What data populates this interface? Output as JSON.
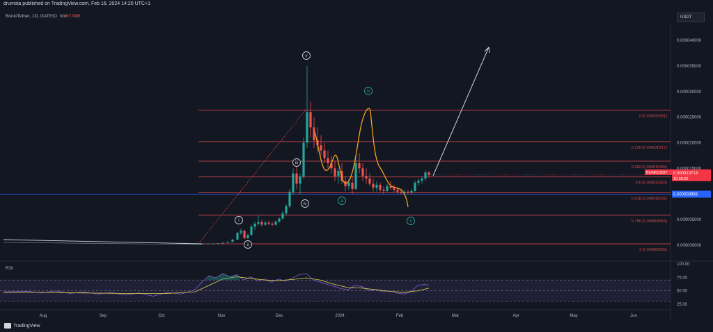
{
  "publisher": "drumsta published on TradingView.com, Feb 16, 2024 14:20 UTC+1",
  "symbol_line": "Bonk/Tether, 1D, GATEIO",
  "volume_label": "Vol",
  "volume_value": "67.99B",
  "currency_button": "USDT",
  "brand": "TradingView",
  "rsi_label": "RSI",
  "colors": {
    "bg": "#131722",
    "fib": "#e0474c",
    "arrow": "#d1d4dc",
    "price": "#f23645",
    "blue": "#2962ff",
    "wave_b": "#26a69a",
    "orange": "#f7a21b",
    "rsi_line": "#7e57c2",
    "rsi_ma": "#c9c24b"
  },
  "chart_data": {
    "type": "line",
    "title": "",
    "x_ticks": [
      "Aug",
      "Sep",
      "Oct",
      "Nov",
      "Dec",
      "2024",
      "Feb",
      "Mar",
      "Apr",
      "May",
      "Jun"
    ],
    "y_ticks": [
      "0.000040000",
      "0.000035000",
      "0.000030000",
      "0.000025000",
      "0.000020000",
      "0.000015000",
      "0.000010000",
      "0.000005000",
      "0.000000000"
    ],
    "ylim": [
      0,
      4e-05
    ],
    "fib_levels": [
      {
        "label": "0 (0.000026381)",
        "value": 2.6381e-05
      },
      {
        "label": "0.236 (0.000020217)",
        "value": 2.0217e-05
      },
      {
        "label": "0.382 (0.000016405)",
        "value": 1.6405e-05
      },
      {
        "label": "0.5 (0.000013323)",
        "value": 1.3323e-05
      },
      {
        "label": "0.618 (0.000010241)",
        "value": 1.0241e-05
      },
      {
        "label": "0.786 (0.000005854)",
        "value": 5.854e-06
      },
      {
        "label": "1 (0.000000265)",
        "value": 2.65e-07
      }
    ],
    "horizontal_line": {
      "label": "0.000009956",
      "value": 9.956e-06
    },
    "current_price": {
      "symbol": "BONKUSDT",
      "value_label": "0.000013713",
      "countdown": "10:39:20",
      "value": 1.3713e-05
    },
    "wave_labels": [
      "i",
      "ii",
      "iii",
      "iv",
      "v",
      "a",
      "b",
      "c"
    ],
    "candles": [
      [
        285,
        2.7e-07,
        2.8e-07,
        2.6e-07,
        2.8e-07
      ],
      [
        292,
        2.8e-07,
        3e-07,
        2.7e-07,
        3e-07
      ],
      [
        299,
        3e-07,
        3.2e-07,
        2.9e-07,
        3.1e-07
      ],
      [
        306,
        3.1e-07,
        3.5e-07,
        3e-07,
        3.4e-07
      ],
      [
        313,
        3.4e-07,
        4e-07,
        3.3e-07,
        3.8e-07
      ],
      [
        320,
        3.8e-07,
        5e-07,
        3.6e-07,
        4.7e-07
      ],
      [
        327,
        4.7e-07,
        7e-07,
        4.5e-07,
        6.5e-07
      ],
      [
        334,
        6.5e-07,
        1.2e-06,
        6e-07,
        1.1e-06
      ],
      [
        341,
        1.1e-06,
        2.6e-06,
        1e-06,
        2.4e-06
      ],
      [
        346,
        2.4e-06,
        3.2e-06,
        2e-06,
        2.8e-06
      ],
      [
        351,
        2.8e-06,
        3e-06,
        1.2e-06,
        1.4e-06
      ],
      [
        356,
        1.4e-06,
        2.2e-06,
        1.2e-06,
        2e-06
      ],
      [
        361,
        2e-06,
        4e-06,
        1.9e-06,
        3.6e-06
      ],
      [
        366,
        3.6e-06,
        4.6e-06,
        3e-06,
        4.2e-06
      ],
      [
        371,
        4.2e-06,
        5.8e-06,
        3.8e-06,
        4.5e-06
      ],
      [
        376,
        4.5e-06,
        5e-06,
        3.6e-06,
        4e-06
      ],
      [
        381,
        4e-06,
        4.8e-06,
        3.8e-06,
        4.4e-06
      ],
      [
        386,
        4.4e-06,
        4.8e-06,
        3.9e-06,
        4.2e-06
      ],
      [
        391,
        4.2e-06,
        4.6e-06,
        3.8e-06,
        4e-06
      ],
      [
        396,
        4e-06,
        4.8e-06,
        3.8e-06,
        4.6e-06
      ],
      [
        401,
        4.6e-06,
        5.4e-06,
        4.4e-06,
        5.2e-06
      ],
      [
        406,
        5.2e-06,
        6.6e-06,
        5e-06,
        6.2e-06
      ],
      [
        411,
        6.2e-06,
        8e-06,
        5.8e-06,
        7.6e-06
      ],
      [
        416,
        7.6e-06,
        1.1e-05,
        7.2e-06,
        1.04e-05
      ],
      [
        421,
        1.04e-05,
        1.5e-05,
        9.8e-06,
        1.4e-05
      ],
      [
        426,
        1.4e-05,
        1.6e-05,
        1.1e-05,
        1.2e-05
      ],
      [
        431,
        1.2e-05,
        1.4e-05,
        1e-05,
        1.34e-05
      ],
      [
        436,
        1.34e-05,
        2.1e-05,
        1.3e-05,
        2e-05
      ],
      [
        441,
        2e-05,
        3.5e-05,
        1.9e-05,
        2.6e-05
      ],
      [
        446,
        2.6e-05,
        2.8e-05,
        2.1e-05,
        2.3e-05
      ],
      [
        451,
        2.3e-05,
        2.5e-05,
        1.9e-05,
        2.05e-05
      ],
      [
        456,
        2.05e-05,
        2.3e-05,
        1.8e-05,
        1.95e-05
      ],
      [
        461,
        1.95e-05,
        2.15e-05,
        1.75e-05,
        1.85e-05
      ],
      [
        466,
        1.85e-05,
        2e-05,
        1.6e-05,
        1.7e-05
      ],
      [
        471,
        1.7e-05,
        1.85e-05,
        1.5e-05,
        1.6e-05
      ],
      [
        476,
        1.6e-05,
        1.75e-05,
        1.4e-05,
        1.5e-05
      ],
      [
        481,
        1.5e-05,
        1.65e-05,
        1.25e-05,
        1.35e-05
      ],
      [
        486,
        1.35e-05,
        1.5e-05,
        1.2e-05,
        1.45e-05
      ],
      [
        491,
        1.45e-05,
        1.6e-05,
        1.2e-05,
        1.25e-05
      ],
      [
        496,
        1.25e-05,
        1.35e-05,
        1.05e-05,
        1.15e-05
      ],
      [
        501,
        1.15e-05,
        1.3e-05,
        1.08e-05,
        1.22e-05
      ],
      [
        506,
        1.22e-05,
        1.35e-05,
        1e-05,
        1.1e-05
      ],
      [
        511,
        1.1e-05,
        1.7e-05,
        1.08e-05,
        1.6e-05
      ],
      [
        516,
        1.6e-05,
        1.8e-05,
        1.4e-05,
        1.5e-05
      ],
      [
        521,
        1.5e-05,
        1.6e-05,
        1.25e-05,
        1.35e-05
      ],
      [
        526,
        1.35e-05,
        1.5e-05,
        1.2e-05,
        1.3e-05
      ],
      [
        531,
        1.3e-05,
        1.4e-05,
        1.15e-05,
        1.2e-05
      ],
      [
        536,
        1.2e-05,
        1.3e-05,
        1.05e-05,
        1.12e-05
      ],
      [
        541,
        1.12e-05,
        1.25e-05,
        1.05e-05,
        1.18e-05
      ],
      [
        546,
        1.18e-05,
        1.22e-05,
        1.04e-05,
        1.08e-05
      ],
      [
        551,
        1.08e-05,
        1.15e-05,
        1e-05,
        1.06e-05
      ],
      [
        556,
        1.06e-05,
        1.2e-05,
        1.04e-05,
        1.15e-05
      ],
      [
        561,
        1.15e-05,
        1.25e-05,
        1.08e-05,
        1.12e-05
      ],
      [
        566,
        1.12e-05,
        1.18e-05,
        1.04e-05,
        1.08e-05
      ],
      [
        571,
        1.08e-05,
        1.12e-05,
        1e-05,
        1.04e-05
      ],
      [
        576,
        1.04e-05,
        1.1e-05,
        9.8e-06,
        1.02e-05
      ],
      [
        581,
        1.02e-05,
        1.08e-05,
        9.8e-06,
        1.04e-05
      ],
      [
        586,
        1.04e-05,
        1.08e-05,
        9.9e-06,
        1.03e-05
      ],
      [
        591,
        1.03e-05,
        1.1e-05,
        1e-05,
        1.06e-05
      ],
      [
        596,
        1.06e-05,
        1.26e-05,
        1.04e-05,
        1.22e-05
      ],
      [
        601,
        1.22e-05,
        1.3e-05,
        1.16e-05,
        1.26e-05
      ],
      [
        606,
        1.26e-05,
        1.34e-05,
        1.2e-05,
        1.3e-05
      ],
      [
        611,
        1.3e-05,
        1.46e-05,
        1.26e-05,
        1.42e-05
      ],
      [
        616,
        1.42e-05,
        1.45e-05,
        1.32e-05,
        1.37e-05
      ]
    ],
    "rsi_ticks": [
      "100.00",
      "75.00",
      "50.00",
      "25.00"
    ],
    "rsi_ylim": [
      0,
      100
    ]
  }
}
